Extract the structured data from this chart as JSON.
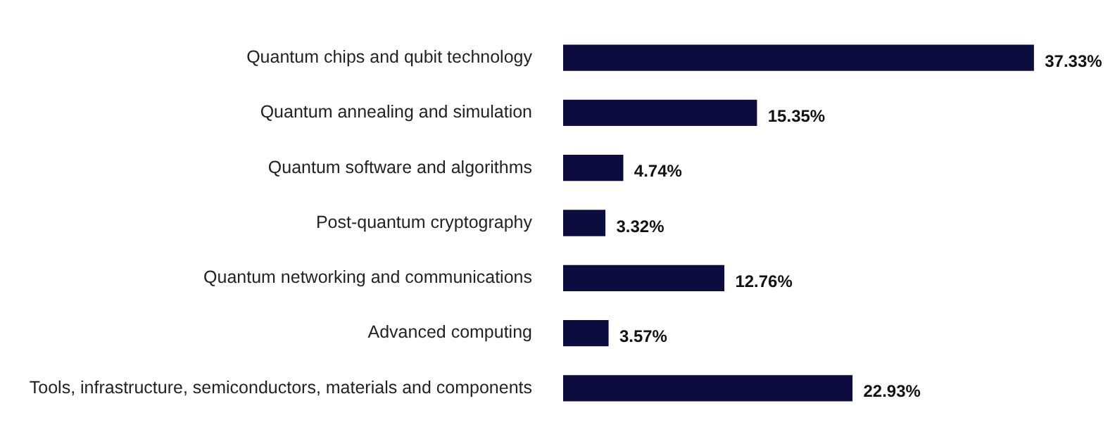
{
  "chart_data": {
    "type": "bar",
    "orientation": "horizontal",
    "categories": [
      "Quantum chips and qubit technology",
      "Quantum annealing and simulation",
      "Quantum software and algorithms",
      "Post-quantum cryptography",
      "Quantum networking and communications",
      "Advanced computing",
      "Tools, infrastructure, semiconductors, materials and components"
    ],
    "values": [
      37.33,
      15.35,
      4.74,
      3.32,
      12.76,
      3.57,
      22.93
    ],
    "value_labels": [
      "37.33%",
      "15.35%",
      "4.74%",
      "3.32%",
      "12.76%",
      "3.57%",
      "22.93%"
    ],
    "color": "#0d0c3e",
    "tick_labels": "y"
  }
}
